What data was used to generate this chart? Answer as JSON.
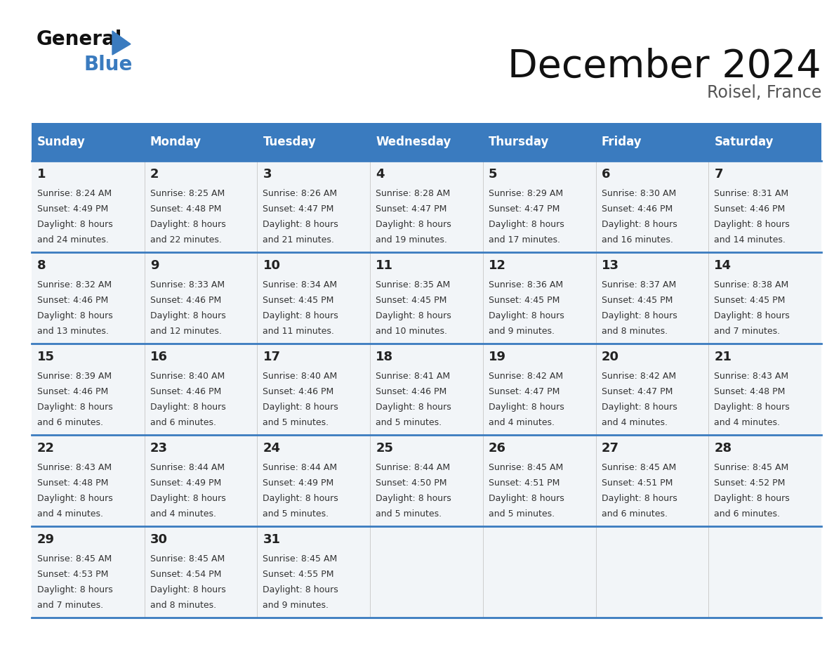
{
  "title": "December 2024",
  "subtitle": "Roisel, France",
  "header_bg_color": "#3A7BBF",
  "header_text_color": "#FFFFFF",
  "cell_bg_color": "#F2F5F8",
  "border_color": "#3A7BBF",
  "text_color": "#333333",
  "day_number_color": "#222222",
  "days_of_week": [
    "Sunday",
    "Monday",
    "Tuesday",
    "Wednesday",
    "Thursday",
    "Friday",
    "Saturday"
  ],
  "calendar_data": [
    [
      {
        "day": 1,
        "sunrise": "8:24 AM",
        "sunset": "4:49 PM",
        "daylight": "8 hours and 24 minutes."
      },
      {
        "day": 2,
        "sunrise": "8:25 AM",
        "sunset": "4:48 PM",
        "daylight": "8 hours and 22 minutes."
      },
      {
        "day": 3,
        "sunrise": "8:26 AM",
        "sunset": "4:47 PM",
        "daylight": "8 hours and 21 minutes."
      },
      {
        "day": 4,
        "sunrise": "8:28 AM",
        "sunset": "4:47 PM",
        "daylight": "8 hours and 19 minutes."
      },
      {
        "day": 5,
        "sunrise": "8:29 AM",
        "sunset": "4:47 PM",
        "daylight": "8 hours and 17 minutes."
      },
      {
        "day": 6,
        "sunrise": "8:30 AM",
        "sunset": "4:46 PM",
        "daylight": "8 hours and 16 minutes."
      },
      {
        "day": 7,
        "sunrise": "8:31 AM",
        "sunset": "4:46 PM",
        "daylight": "8 hours and 14 minutes."
      }
    ],
    [
      {
        "day": 8,
        "sunrise": "8:32 AM",
        "sunset": "4:46 PM",
        "daylight": "8 hours and 13 minutes."
      },
      {
        "day": 9,
        "sunrise": "8:33 AM",
        "sunset": "4:46 PM",
        "daylight": "8 hours and 12 minutes."
      },
      {
        "day": 10,
        "sunrise": "8:34 AM",
        "sunset": "4:45 PM",
        "daylight": "8 hours and 11 minutes."
      },
      {
        "day": 11,
        "sunrise": "8:35 AM",
        "sunset": "4:45 PM",
        "daylight": "8 hours and 10 minutes."
      },
      {
        "day": 12,
        "sunrise": "8:36 AM",
        "sunset": "4:45 PM",
        "daylight": "8 hours and 9 minutes."
      },
      {
        "day": 13,
        "sunrise": "8:37 AM",
        "sunset": "4:45 PM",
        "daylight": "8 hours and 8 minutes."
      },
      {
        "day": 14,
        "sunrise": "8:38 AM",
        "sunset": "4:45 PM",
        "daylight": "8 hours and 7 minutes."
      }
    ],
    [
      {
        "day": 15,
        "sunrise": "8:39 AM",
        "sunset": "4:46 PM",
        "daylight": "8 hours and 6 minutes."
      },
      {
        "day": 16,
        "sunrise": "8:40 AM",
        "sunset": "4:46 PM",
        "daylight": "8 hours and 6 minutes."
      },
      {
        "day": 17,
        "sunrise": "8:40 AM",
        "sunset": "4:46 PM",
        "daylight": "8 hours and 5 minutes."
      },
      {
        "day": 18,
        "sunrise": "8:41 AM",
        "sunset": "4:46 PM",
        "daylight": "8 hours and 5 minutes."
      },
      {
        "day": 19,
        "sunrise": "8:42 AM",
        "sunset": "4:47 PM",
        "daylight": "8 hours and 4 minutes."
      },
      {
        "day": 20,
        "sunrise": "8:42 AM",
        "sunset": "4:47 PM",
        "daylight": "8 hours and 4 minutes."
      },
      {
        "day": 21,
        "sunrise": "8:43 AM",
        "sunset": "4:48 PM",
        "daylight": "8 hours and 4 minutes."
      }
    ],
    [
      {
        "day": 22,
        "sunrise": "8:43 AM",
        "sunset": "4:48 PM",
        "daylight": "8 hours and 4 minutes."
      },
      {
        "day": 23,
        "sunrise": "8:44 AM",
        "sunset": "4:49 PM",
        "daylight": "8 hours and 4 minutes."
      },
      {
        "day": 24,
        "sunrise": "8:44 AM",
        "sunset": "4:49 PM",
        "daylight": "8 hours and 5 minutes."
      },
      {
        "day": 25,
        "sunrise": "8:44 AM",
        "sunset": "4:50 PM",
        "daylight": "8 hours and 5 minutes."
      },
      {
        "day": 26,
        "sunrise": "8:45 AM",
        "sunset": "4:51 PM",
        "daylight": "8 hours and 5 minutes."
      },
      {
        "day": 27,
        "sunrise": "8:45 AM",
        "sunset": "4:51 PM",
        "daylight": "8 hours and 6 minutes."
      },
      {
        "day": 28,
        "sunrise": "8:45 AM",
        "sunset": "4:52 PM",
        "daylight": "8 hours and 6 minutes."
      }
    ],
    [
      {
        "day": 29,
        "sunrise": "8:45 AM",
        "sunset": "4:53 PM",
        "daylight": "8 hours and 7 minutes."
      },
      {
        "day": 30,
        "sunrise": "8:45 AM",
        "sunset": "4:54 PM",
        "daylight": "8 hours and 8 minutes."
      },
      {
        "day": 31,
        "sunrise": "8:45 AM",
        "sunset": "4:55 PM",
        "daylight": "8 hours and 9 minutes."
      },
      null,
      null,
      null,
      null
    ]
  ]
}
